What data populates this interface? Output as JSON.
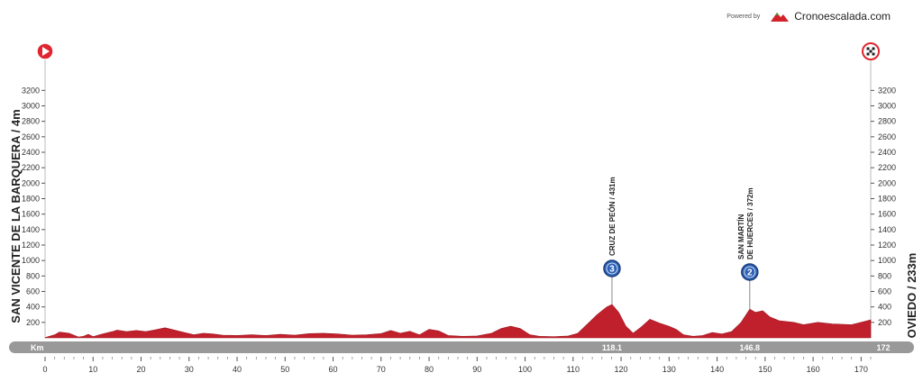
{
  "credit": {
    "powered": "Powered by",
    "brand": "Cronoescalada.com"
  },
  "chart_data": {
    "type": "area",
    "title": "",
    "xlabel": "Km",
    "ylabel": "",
    "xlim": [
      0,
      172
    ],
    "ylim": [
      0,
      3400
    ],
    "x_ticks": [
      0,
      10,
      20,
      30,
      40,
      50,
      60,
      70,
      80,
      90,
      100,
      110,
      120,
      130,
      140,
      150,
      160,
      170
    ],
    "y_ticks": [
      200,
      400,
      600,
      800,
      1000,
      1200,
      1400,
      1600,
      1800,
      2000,
      2200,
      2400,
      2600,
      2800,
      3000,
      3200
    ],
    "start": {
      "label": "SAN VICENTE DE LA BARQUERA / 4m",
      "km": 0,
      "altitude_m": 4
    },
    "finish": {
      "label": "OVIEDO / 233m",
      "km": 172,
      "altitude_m": 233
    },
    "climbs": [
      {
        "name": "CRUZ DE PEÓN / 431m",
        "name_lines": [
          "CRUZ DE PEÓN / 431m"
        ],
        "km": 118.1,
        "km_label": "118.1",
        "altitude_m": 431,
        "category": "3"
      },
      {
        "name": "SAN MARTÍN DE HUERCES / 372m",
        "name_lines": [
          "SAN MARTÍN",
          "DE HUERCES / 372m"
        ],
        "km": 146.8,
        "km_label": "146.8",
        "altitude_m": 372,
        "category": "2"
      }
    ],
    "end_km_label": "172",
    "profile": [
      [
        0,
        4
      ],
      [
        2,
        40
      ],
      [
        3,
        75
      ],
      [
        5,
        60
      ],
      [
        7,
        10
      ],
      [
        8,
        20
      ],
      [
        9,
        45
      ],
      [
        10,
        15
      ],
      [
        12,
        50
      ],
      [
        14,
        80
      ],
      [
        15,
        100
      ],
      [
        17,
        80
      ],
      [
        19,
        95
      ],
      [
        21,
        80
      ],
      [
        23,
        105
      ],
      [
        25,
        130
      ],
      [
        27,
        100
      ],
      [
        29,
        70
      ],
      [
        31,
        40
      ],
      [
        33,
        60
      ],
      [
        35,
        50
      ],
      [
        37,
        35
      ],
      [
        40,
        30
      ],
      [
        43,
        40
      ],
      [
        46,
        30
      ],
      [
        49,
        45
      ],
      [
        52,
        35
      ],
      [
        55,
        55
      ],
      [
        58,
        60
      ],
      [
        61,
        50
      ],
      [
        64,
        35
      ],
      [
        67,
        40
      ],
      [
        70,
        55
      ],
      [
        72,
        95
      ],
      [
        74,
        60
      ],
      [
        76,
        85
      ],
      [
        78,
        40
      ],
      [
        80,
        110
      ],
      [
        82,
        90
      ],
      [
        84,
        30
      ],
      [
        87,
        20
      ],
      [
        90,
        25
      ],
      [
        93,
        60
      ],
      [
        95,
        120
      ],
      [
        97,
        150
      ],
      [
        99,
        120
      ],
      [
        101,
        40
      ],
      [
        103,
        20
      ],
      [
        106,
        15
      ],
      [
        109,
        25
      ],
      [
        111,
        60
      ],
      [
        113,
        180
      ],
      [
        115,
        300
      ],
      [
        117,
        400
      ],
      [
        118.1,
        431
      ],
      [
        119.5,
        330
      ],
      [
        121,
        150
      ],
      [
        122.5,
        60
      ],
      [
        124,
        130
      ],
      [
        126,
        240
      ],
      [
        128,
        190
      ],
      [
        130,
        150
      ],
      [
        131.5,
        110
      ],
      [
        133,
        40
      ],
      [
        135,
        20
      ],
      [
        137,
        30
      ],
      [
        139,
        70
      ],
      [
        141,
        50
      ],
      [
        143,
        80
      ],
      [
        145,
        200
      ],
      [
        146.8,
        372
      ],
      [
        148,
        330
      ],
      [
        149.5,
        350
      ],
      [
        151,
        270
      ],
      [
        153,
        220
      ],
      [
        156,
        200
      ],
      [
        158,
        170
      ],
      [
        161,
        200
      ],
      [
        164,
        180
      ],
      [
        168,
        170
      ],
      [
        170,
        200
      ],
      [
        172,
        233
      ]
    ],
    "colors": {
      "fill": "#c0202c",
      "start_marker": "#e0252f",
      "axis_bar": "#999999",
      "climb_badge": "#2e63b8"
    }
  }
}
